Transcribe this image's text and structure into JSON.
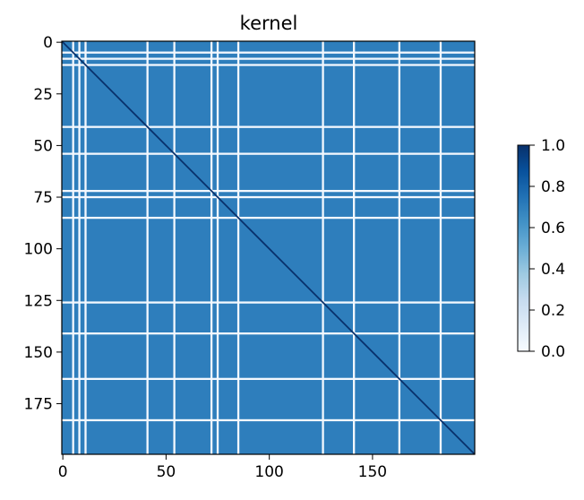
{
  "chart_data": {
    "type": "heatmap",
    "title": "kernel",
    "xlabel": "",
    "ylabel": "",
    "size": 200,
    "xlim": [
      0,
      199
    ],
    "ylim": [
      199,
      0
    ],
    "x_ticks": [
      0,
      50,
      100,
      150
    ],
    "y_ticks": [
      0,
      25,
      50,
      75,
      100,
      125,
      150,
      175
    ],
    "colormap": "Blues",
    "colormap_stops": [
      "#f7fbff",
      "#deebf7",
      "#c6dbef",
      "#9ecae1",
      "#6baed6",
      "#4292c6",
      "#2171b5",
      "#08519c",
      "#08306b"
    ],
    "vmin": 0.0,
    "vmax": 1.0,
    "typical_value": 0.7,
    "diagonal_value": 1.0,
    "near_zero_rows_cols": [
      5,
      8,
      11,
      41,
      54,
      72,
      75,
      85,
      126,
      141,
      163,
      183
    ],
    "colorbar": {
      "ticks": [
        0.0,
        0.2,
        0.4,
        0.6,
        0.8,
        1.0
      ],
      "tick_labels": [
        "0.0",
        "0.2",
        "0.4",
        "0.6",
        "0.8",
        "1.0"
      ],
      "placement": "right"
    }
  }
}
